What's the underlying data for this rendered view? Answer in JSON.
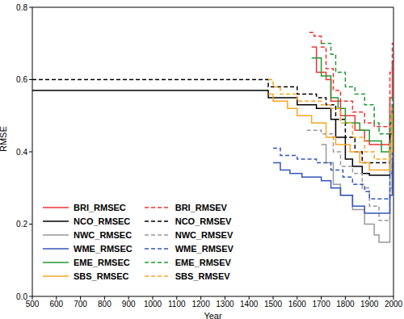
{
  "chart_data": {
    "type": "line",
    "x_label": "Year",
    "y_label": "RMSE",
    "xlim": [
      500,
      2000
    ],
    "xticks": [
      500,
      600,
      700,
      800,
      900,
      1000,
      1100,
      1200,
      1300,
      1400,
      1500,
      1600,
      1700,
      1800,
      1900,
      2000
    ],
    "ylim": [
      0,
      0.8
    ],
    "yticks": [
      {
        "value": 0,
        "label": "0.0"
      },
      0.2,
      0.4,
      0.6,
      0.8
    ],
    "grid": false,
    "legend": "lower left",
    "series": [
      {
        "name": "BRI_RMSEC",
        "color": "#ee3333",
        "line_style": "solid",
        "x": [
          1660,
          1680,
          1720,
          1740,
          1780,
          1840,
          1880,
          1900,
          1975,
          1985,
          1995,
          2000
        ],
        "values": [
          0.69,
          0.62,
          0.6,
          0.54,
          0.5,
          0.46,
          0.43,
          0.42,
          0.42,
          0.55,
          0.65,
          0.65
        ]
      },
      {
        "name": "BRI_RMSEV",
        "color": "#ee3333",
        "line_style": "dashed",
        "x": [
          1650,
          1670,
          1700,
          1720,
          1750,
          1780,
          1830,
          1880,
          1920,
          1975,
          1985,
          1995,
          2000
        ],
        "values": [
          0.73,
          0.72,
          0.69,
          0.63,
          0.57,
          0.54,
          0.51,
          0.48,
          0.47,
          0.47,
          0.62,
          0.7,
          0.7
        ]
      },
      {
        "name": "NCO_RMSEC",
        "color": "#000000",
        "line_style": "solid",
        "x": [
          500,
          1480,
          1600,
          1680,
          1740,
          1760,
          1800,
          1830,
          1870,
          1900,
          1975,
          1985,
          1995,
          2000
        ],
        "values": [
          0.57,
          0.55,
          0.53,
          0.52,
          0.49,
          0.44,
          0.38,
          0.36,
          0.34,
          0.335,
          0.335,
          0.45,
          0.52,
          0.52
        ]
      },
      {
        "name": "NCO_RMSEV",
        "color": "#000000",
        "line_style": "dashed",
        "x": [
          500,
          1480,
          1600,
          1680,
          1720,
          1760,
          1800,
          1840,
          1870,
          1975,
          1985,
          1995,
          2000
        ],
        "values": [
          0.6,
          0.58,
          0.56,
          0.55,
          0.53,
          0.49,
          0.44,
          0.4,
          0.37,
          0.37,
          0.48,
          0.53,
          0.53
        ]
      },
      {
        "name": "NWC_RMSEC",
        "color": "#999999",
        "line_style": "solid",
        "x": [
          1700,
          1720,
          1750,
          1780,
          1830,
          1880,
          1920,
          1940,
          1975,
          1985,
          1995,
          2000
        ],
        "values": [
          0.42,
          0.37,
          0.31,
          0.28,
          0.24,
          0.2,
          0.17,
          0.15,
          0.15,
          0.3,
          0.43,
          0.43
        ]
      },
      {
        "name": "NWC_RMSEV",
        "color": "#999999",
        "line_style": "dashed",
        "x": [
          1640,
          1700,
          1750,
          1780,
          1830,
          1870,
          1900,
          1940,
          1975,
          1985,
          1995,
          2000
        ],
        "values": [
          0.46,
          0.45,
          0.4,
          0.36,
          0.34,
          0.3,
          0.25,
          0.21,
          0.21,
          0.38,
          0.48,
          0.48
        ]
      },
      {
        "name": "WME_RMSEC",
        "color": "#3355bb",
        "line_style": "solid",
        "x": [
          1500,
          1530,
          1570,
          1620,
          1700,
          1740,
          1780,
          1830,
          1880,
          1975,
          1985,
          1995,
          2000
        ],
        "values": [
          0.37,
          0.35,
          0.34,
          0.33,
          0.32,
          0.3,
          0.28,
          0.25,
          0.23,
          0.23,
          0.28,
          0.37,
          0.37
        ]
      },
      {
        "name": "WME_RMSEV",
        "color": "#3355bb",
        "line_style": "dashed",
        "x": [
          1500,
          1530,
          1600,
          1680,
          1740,
          1790,
          1830,
          1880,
          1900,
          1975,
          1985,
          1995,
          2000
        ],
        "values": [
          0.41,
          0.39,
          0.38,
          0.37,
          0.35,
          0.33,
          0.31,
          0.29,
          0.27,
          0.27,
          0.34,
          0.42,
          0.42
        ]
      },
      {
        "name": "EME_RMSEC",
        "color": "#229933",
        "line_style": "solid",
        "x": [
          1660,
          1700,
          1740,
          1770,
          1800,
          1860,
          1900,
          1950,
          1975,
          1985,
          1995,
          2000
        ],
        "values": [
          0.66,
          0.61,
          0.55,
          0.52,
          0.48,
          0.46,
          0.43,
          0.4,
          0.4,
          0.43,
          0.5,
          0.5
        ]
      },
      {
        "name": "EME_RMSEV",
        "color": "#229933",
        "line_style": "dashed",
        "x": [
          1700,
          1740,
          1760,
          1800,
          1840,
          1880,
          1920,
          1940,
          1975,
          1985,
          1995,
          2000
        ],
        "values": [
          0.7,
          0.67,
          0.62,
          0.58,
          0.56,
          0.53,
          0.48,
          0.45,
          0.45,
          0.5,
          0.55,
          0.55
        ]
      },
      {
        "name": "SBS_RMSEC",
        "color": "#f5a623",
        "line_style": "solid",
        "x": [
          1480,
          1500,
          1560,
          1600,
          1660,
          1720,
          1760,
          1820,
          1860,
          1900,
          1975,
          1985,
          1995,
          2000
        ],
        "values": [
          0.56,
          0.54,
          0.52,
          0.5,
          0.48,
          0.44,
          0.42,
          0.4,
          0.37,
          0.35,
          0.35,
          0.4,
          0.5,
          0.5
        ]
      },
      {
        "name": "SBS_RMSEV",
        "color": "#f5a623",
        "line_style": "dashed",
        "x": [
          1480,
          1500,
          1530,
          1600,
          1700,
          1740,
          1780,
          1830,
          1880,
          1920,
          1975,
          1985,
          1995,
          2000
        ],
        "values": [
          0.6,
          0.58,
          0.56,
          0.54,
          0.53,
          0.52,
          0.48,
          0.44,
          0.4,
          0.38,
          0.38,
          0.43,
          0.52,
          0.52
        ]
      }
    ]
  }
}
